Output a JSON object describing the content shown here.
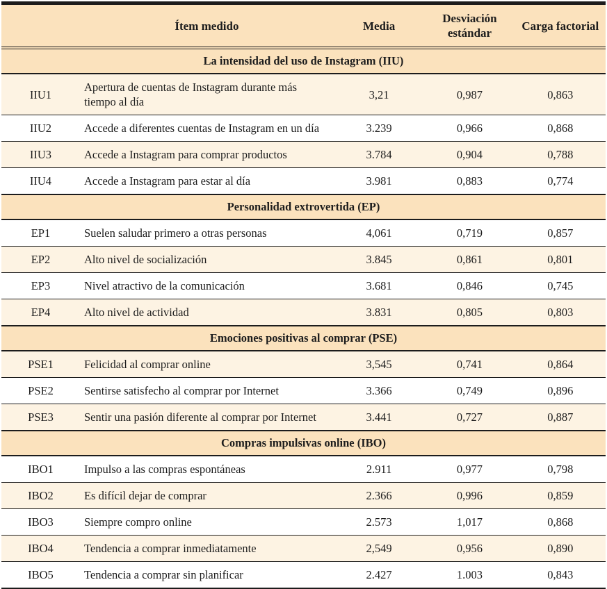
{
  "colors": {
    "band": "#fbe2bd",
    "shaded_row": "#fdf3e3",
    "plain_row": "#ffffff",
    "border": "#1c1c1c"
  },
  "table": {
    "header": {
      "item": "Ítem medido",
      "media": "Media",
      "sd": "Desviación estándar",
      "load": "Carga factorial"
    },
    "sections": [
      {
        "title": "La intensidad del uso de Instagram (IIU)",
        "zebra_start": "shaded",
        "rows": [
          {
            "code": "IIU1",
            "item": "Apertura de cuentas de Instagram durante más tiempo al día",
            "media": "3,21",
            "sd": "0,987",
            "load": "0,863"
          },
          {
            "code": "IIU2",
            "item": "Accede a diferentes cuentas de Instagram en un día",
            "media": "3.239",
            "sd": "0,966",
            "load": "0,868"
          },
          {
            "code": "IIU3",
            "item": "Accede a Instagram para comprar productos",
            "media": "3.784",
            "sd": "0,904",
            "load": "0,788"
          },
          {
            "code": "IIU4",
            "item": "Accede a Instagram para estar al día",
            "media": "3.981",
            "sd": "0,883",
            "load": "0,774"
          }
        ]
      },
      {
        "title": "Personalidad extrovertida (EP)",
        "zebra_start": "plain",
        "rows": [
          {
            "code": "EP1",
            "item": "Suelen saludar primero a otras personas",
            "media": "4,061",
            "sd": "0,719",
            "load": "0,857"
          },
          {
            "code": "EP2",
            "item": "Alto nivel de socialización",
            "media": "3.845",
            "sd": "0,861",
            "load": "0,801"
          },
          {
            "code": "EP3",
            "item": "Nivel atractivo de la comunicación",
            "media": "3.681",
            "sd": "0,846",
            "load": "0,745"
          },
          {
            "code": "EP4",
            "item": "Alto nivel de actividad",
            "media": "3.831",
            "sd": "0,805",
            "load": "0,803"
          }
        ]
      },
      {
        "title": "Emociones positivas al comprar (PSE)",
        "zebra_start": "shaded",
        "rows": [
          {
            "code": "PSE1",
            "item": "Felicidad al comprar online",
            "media": "3,545",
            "sd": "0,741",
            "load": "0,864"
          },
          {
            "code": "PSE2",
            "item": "Sentirse satisfecho al comprar por Internet",
            "media": "3.366",
            "sd": "0,749",
            "load": "0,896"
          },
          {
            "code": "PSE3",
            "item": "Sentir una pasión diferente al comprar por Internet",
            "media": "3.441",
            "sd": "0,727",
            "load": "0,887"
          }
        ]
      },
      {
        "title": "Compras impulsivas online (IBO)",
        "zebra_start": "plain",
        "rows": [
          {
            "code": "IBO1",
            "item": "Impulso a las compras espontáneas",
            "media": "2.911",
            "sd": "0,977",
            "load": "0,798"
          },
          {
            "code": "IBO2",
            "item": "Es difícil dejar de comprar",
            "media": "2.366",
            "sd": "0,996",
            "load": "0,859"
          },
          {
            "code": "IBO3",
            "item": "Siempre compro online",
            "media": "2.573",
            "sd": "1,017",
            "load": "0,868"
          },
          {
            "code": "IBO4",
            "item": "Tendencia a comprar inmediatamente",
            "media": "2,549",
            "sd": "0,956",
            "load": "0,890"
          },
          {
            "code": "IBO5",
            "item": "Tendencia a comprar sin planificar",
            "media": "2.427",
            "sd": "1.003",
            "load": "0,843"
          }
        ]
      }
    ]
  }
}
